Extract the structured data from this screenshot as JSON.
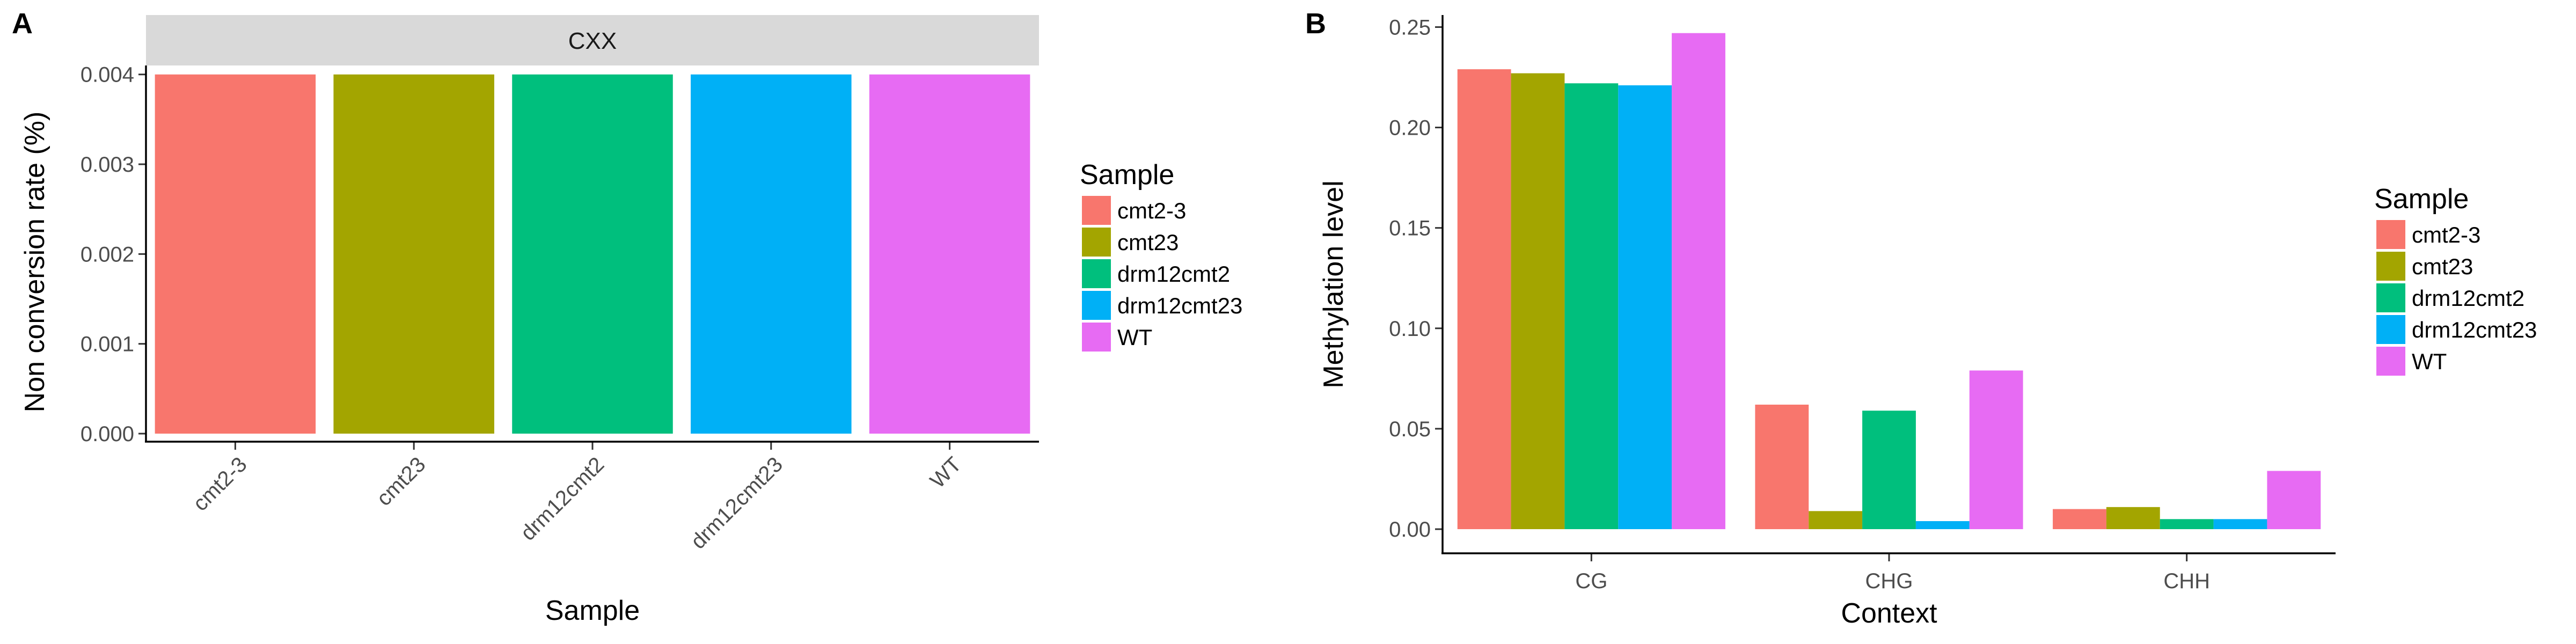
{
  "chart_data": [
    {
      "panel": "A",
      "type": "bar",
      "strip": "CXX",
      "categories": [
        "cmt2-3",
        "cmt23",
        "drm12cmt2",
        "drm12cmt23",
        "WT"
      ],
      "values": [
        0.004,
        0.004,
        0.004,
        0.004,
        0.004
      ],
      "xlabel": "Sample",
      "ylabel": "Non conversion rate (%)",
      "ylim": [
        0,
        0.0041
      ],
      "yticks": [
        "0.000",
        "0.001",
        "0.002",
        "0.003",
        "0.004"
      ],
      "ytick_values": [
        0,
        0.001,
        0.002,
        0.003,
        0.004
      ],
      "legend": {
        "title": "Sample",
        "position": "right",
        "entries": [
          "cmt2-3",
          "cmt23",
          "drm12cmt2",
          "drm12cmt23",
          "WT"
        ]
      },
      "grid": false
    },
    {
      "panel": "B",
      "type": "bar",
      "categories": [
        "CG",
        "CHG",
        "CHH"
      ],
      "series": [
        {
          "name": "cmt2-3",
          "values": [
            0.229,
            0.062,
            0.01
          ]
        },
        {
          "name": "cmt23",
          "values": [
            0.227,
            0.009,
            0.011
          ]
        },
        {
          "name": "drm12cmt2",
          "values": [
            0.222,
            0.059,
            0.005
          ]
        },
        {
          "name": "drm12cmt23",
          "values": [
            0.221,
            0.004,
            0.005
          ]
        },
        {
          "name": "WT",
          "values": [
            0.247,
            0.079,
            0.029
          ]
        }
      ],
      "xlabel": "Context",
      "ylabel": "Methylation level",
      "ylim": [
        0,
        0.256
      ],
      "yticks": [
        "0.00",
        "0.05",
        "0.10",
        "0.15",
        "0.20",
        "0.25"
      ],
      "ytick_values": [
        0,
        0.05,
        0.1,
        0.15,
        0.2,
        0.25
      ],
      "legend": {
        "title": "Sample",
        "position": "right",
        "entries": [
          "cmt2-3",
          "cmt23",
          "drm12cmt2",
          "drm12cmt23",
          "WT"
        ]
      },
      "grid": false
    }
  ],
  "colors": {
    "cmt2-3": "#F8766D",
    "cmt23": "#A3A500",
    "drm12cmt2": "#00BF7D",
    "drm12cmt23": "#00B0F6",
    "WT": "#E76BF3",
    "strip": "#d9d9d9"
  }
}
